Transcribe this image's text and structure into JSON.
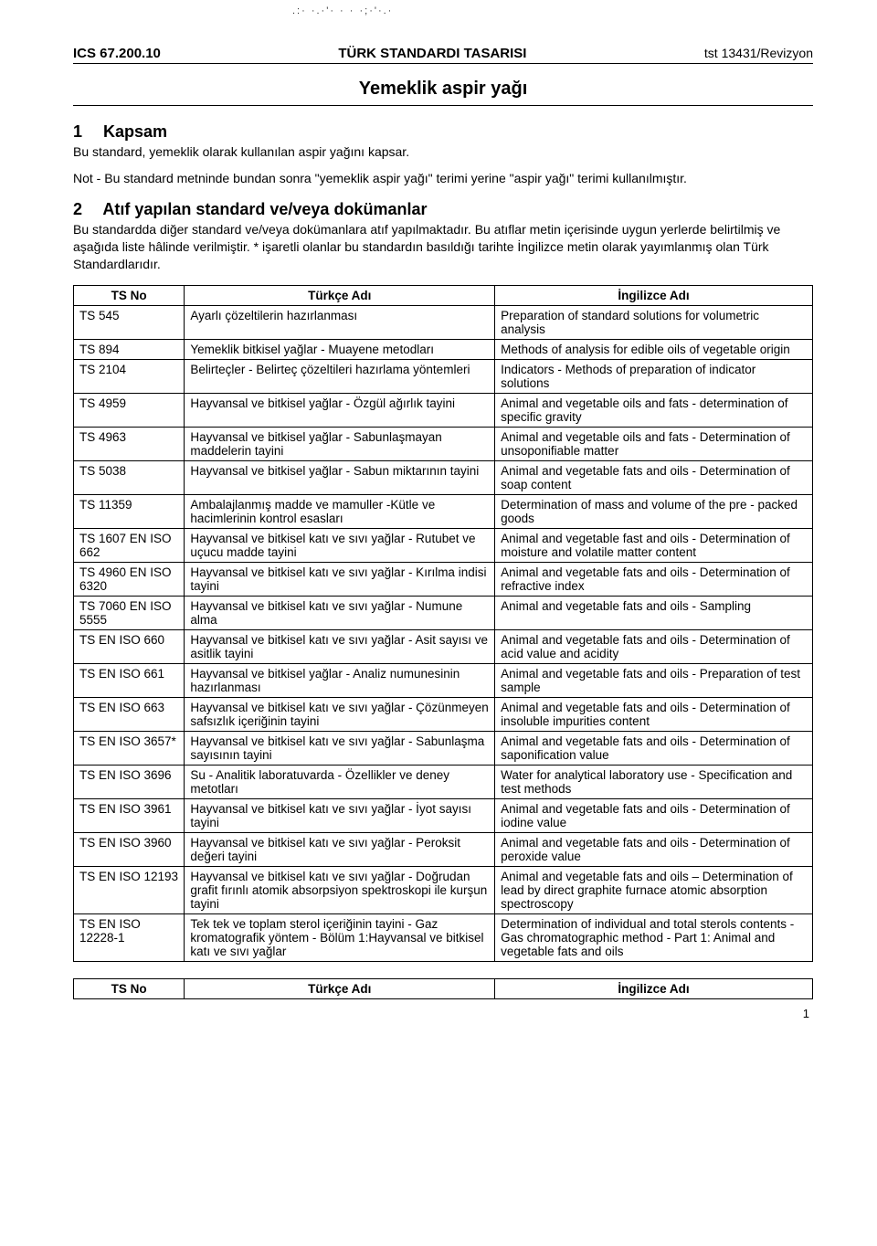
{
  "header": {
    "ics": "ICS 67.200.10",
    "center": "TÜRK STANDARDI TASARISI",
    "right": "tst 13431/Revizyon"
  },
  "title": "Yemeklik aspir yağı",
  "section1": {
    "num": "1",
    "heading": "Kapsam",
    "body": "Bu standard, yemeklik olarak kullanılan aspir yağını kapsar.",
    "note": "Not -  Bu standard metninde bundan sonra \"yemeklik aspir yağı\" terimi yerine \"aspir yağı\" terimi kullanılmıştır."
  },
  "section2": {
    "num": "2",
    "heading": "Atıf yapılan standard ve/veya dokümanlar",
    "body": "Bu standardda diğer standard ve/veya dokümanlara atıf yapılmaktadır. Bu atıflar metin içerisinde uygun yerlerde belirtilmiş ve aşağıda liste hâlinde verilmiştir. * işaretli olanlar bu standardın basıldığı tarihte İngilizce metin olarak yayımlanmış olan Türk Standardlarıdır."
  },
  "table": {
    "headers": {
      "c1": "TS No",
      "c2": "Türkçe Adı",
      "c3": "İngilizce Adı"
    },
    "rows": [
      {
        "ts": "TS 545",
        "tr": "Ayarlı çözeltilerin hazırlanması",
        "en": "Preparation of standard solutions for volumetric analysis"
      },
      {
        "ts": "TS 894",
        "tr": "Yemeklik bitkisel yağlar - Muayene metodları",
        "en": "Methods of analysis for edible oils of vegetable origin"
      },
      {
        "ts": "TS 2104",
        "tr": "Belirteçler - Belirteç çözeltileri hazırlama yöntemleri",
        "en": "Indicators - Methods of preparation of indicator solutions"
      },
      {
        "ts": "TS 4959",
        "tr": "Hayvansal ve bitkisel yağlar - Özgül ağırlık tayini",
        "en": "Animal and vegetable oils and fats - determination of specific gravity"
      },
      {
        "ts": "TS 4963",
        "tr": "Hayvansal ve bitkisel yağlar - Sabunlaşmayan maddelerin tayini",
        "en": "Animal and vegetable oils and fats - Determination of unsoponifiable matter"
      },
      {
        "ts": "TS 5038",
        "tr": "Hayvansal ve bitkisel yağlar - Sabun miktarının tayini",
        "en": "Animal and vegetable fats and oils - Determination of soap content"
      },
      {
        "ts": "TS 11359",
        "tr": "Ambalajlanmış madde ve mamuller -Kütle ve hacimlerinin kontrol esasları",
        "en": "Determination of mass and volume of the pre - packed goods"
      },
      {
        "ts": "TS 1607 EN ISO 662",
        "tr": "Hayvansal ve bitkisel katı ve sıvı yağlar - Rutubet ve uçucu madde tayini",
        "en": "Animal and vegetable fast and oils - Determination of moisture and volatile matter content"
      },
      {
        "ts": "TS 4960 EN ISO 6320",
        "tr": "Hayvansal ve bitkisel katı ve sıvı yağlar - Kırılma indisi tayini",
        "en": "Animal and vegetable fats and oils - Determination of refractive index"
      },
      {
        "ts": "TS 7060 EN ISO 5555",
        "tr": "Hayvansal ve bitkisel katı ve sıvı yağlar - Numune alma",
        "en": "Animal and vegetable fats and oils - Sampling"
      },
      {
        "ts": "TS EN ISO 660",
        "tr": "Hayvansal ve bitkisel katı ve sıvı yağlar - Asit sayısı ve asitlik tayini",
        "en": "Animal and vegetable fats and oils - Determination of acid value and acidity"
      },
      {
        "ts": "TS EN ISO 661",
        "tr": "Hayvansal ve bitkisel yağlar - Analiz numunesinin hazırlanması",
        "en": "Animal and vegetable fats and oils - Preparation of test sample"
      },
      {
        "ts": "TS EN ISO 663",
        "tr": "Hayvansal ve bitkisel katı ve sıvı yağlar - Çözünmeyen safsızlık içeriğinin tayini",
        "en": "Animal and vegetable fats and oils - Determination of insoluble impurities content"
      },
      {
        "ts": "TS EN ISO 3657*",
        "tr": "Hayvansal ve bitkisel katı ve sıvı yağlar - Sabunlaşma sayısının tayini",
        "en": "Animal and vegetable fats and oils - Determination of saponification value"
      },
      {
        "ts": "TS EN ISO 3696",
        "tr": "Su - Analitik laboratuvarda - Özellikler ve deney metotları",
        "en": "Water for analytical laboratory use - Specification and test methods"
      },
      {
        "ts": "TS EN ISO 3961",
        "tr": "Hayvansal ve bitkisel katı ve sıvı yağlar - İyot sayısı tayini",
        "en": "Animal and vegetable fats and oils - Determination of iodine value"
      },
      {
        "ts": "TS EN ISO 3960",
        "tr": "Hayvansal ve bitkisel katı ve sıvı yağlar - Peroksit değeri tayini",
        "en": "Animal and vegetable fats and oils - Determination of peroxide value"
      },
      {
        "ts": "TS EN ISO 12193",
        "tr": "Hayvansal ve bitkisel katı ve sıvı yağlar - Doğrudan grafit fırınlı atomik absorpsiyon spektroskopi ile kurşun tayini",
        "en": "Animal and vegetable fats and oils – Determination of lead by direct graphite furnace atomic absorption spectroscopy"
      },
      {
        "ts": "TS EN ISO 12228-1",
        "tr": "Tek tek ve toplam sterol içeriğinin tayini - Gaz kromatografik yöntem - Bölüm 1:Hayvansal ve bitkisel katı ve sıvı yağlar",
        "en": "Determination of individual and total sterols contents - Gas chromatographic method - Part 1: Animal and vegetable fats and oils"
      }
    ]
  },
  "footerHeaders": {
    "c1": "TS No",
    "c2": "Türkçe Adı",
    "c3": "İngilizce Adı"
  },
  "pageNumber": "1",
  "noise": ".:·  ·.·'·  · ·    ·;·'·.·"
}
